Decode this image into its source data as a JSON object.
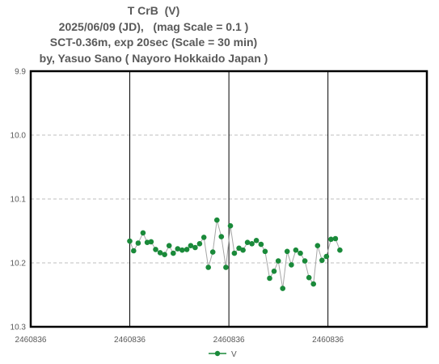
{
  "title_lines": [
    "T CrB  (V)",
    "2025/06/09 (JD),   (mag Scale = 0.1 )",
    "SCT-0.36m, exp 20sec (Scale = 30 min)",
    "by, Yasuo Sano ( Nayoro Hokkaido Japan )"
  ],
  "chart_data": {
    "type": "line",
    "title": "T CrB  (V)",
    "subtitle": [
      "2025/06/09 (JD),   (mag Scale = 0.1 )",
      "SCT-0.36m, exp 20sec (Scale = 30 min)",
      "by, Yasuo Sano ( Nayoro Hokkaido Japan )"
    ],
    "y_axis": {
      "reversed": true,
      "range": [
        9.9,
        10.3
      ],
      "ticks": [
        "9.9",
        "10.0",
        "10.1",
        "10.2",
        "10.3"
      ],
      "gridlines": "dashed"
    },
    "x_axis": {
      "tick_labels": [
        "2460836",
        "2460836",
        "2460836",
        "2460836"
      ],
      "major_gridlines": "solid vertical",
      "range_fraction_of_day": [
        0.0,
        0.0833
      ],
      "tick_positions_fraction_of_day": [
        0.0,
        0.02083,
        0.04167,
        0.0625
      ]
    },
    "legend": {
      "position": "bottom",
      "entries": [
        "V"
      ]
    },
    "series": [
      {
        "name": "V",
        "color": "#1a8a3a",
        "marker": "circle",
        "x_fraction_of_day": [
          0.02083,
          0.02164,
          0.0226,
          0.02362,
          0.0245,
          0.02531,
          0.02627,
          0.02721,
          0.02815,
          0.02911,
          0.02997,
          0.0309,
          0.03184,
          0.03282,
          0.03364,
          0.03458,
          0.03552,
          0.03641,
          0.03735,
          0.03829,
          0.03915,
          0.04009,
          0.04103,
          0.04199,
          0.04283,
          0.04379,
          0.04465,
          0.04557,
          0.04651,
          0.04745,
          0.04843,
          0.04929,
          0.05023,
          0.05117,
          0.05205,
          0.05299,
          0.05393,
          0.05481,
          0.05575,
          0.05669,
          0.05765,
          0.05851,
          0.05945,
          0.06031,
          0.06125,
          0.06219,
          0.06313,
          0.06407,
          0.065
        ],
        "values": [
          10.166,
          10.181,
          10.169,
          10.153,
          10.168,
          10.167,
          10.179,
          10.184,
          10.187,
          10.173,
          10.185,
          10.178,
          10.18,
          10.179,
          10.173,
          10.176,
          10.17,
          10.16,
          10.207,
          10.183,
          10.133,
          10.159,
          10.207,
          10.142,
          10.185,
          10.177,
          10.18,
          10.168,
          10.17,
          10.165,
          10.171,
          10.182,
          10.224,
          10.213,
          10.197,
          10.24,
          10.182,
          10.203,
          10.18,
          10.185,
          10.197,
          10.223,
          10.233,
          10.173,
          10.196,
          10.19,
          10.163,
          10.162,
          10.18
        ]
      }
    ]
  }
}
